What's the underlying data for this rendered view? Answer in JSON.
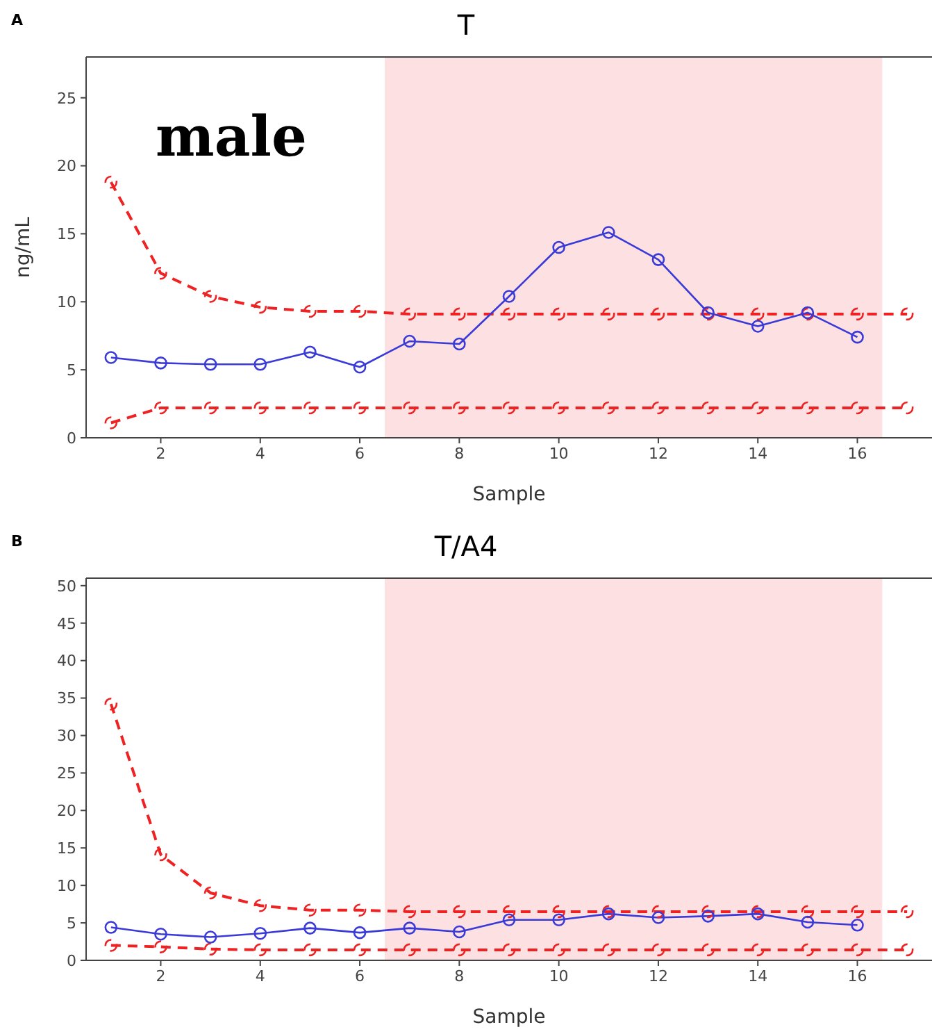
{
  "chart_data": [
    {
      "type": "line",
      "title": "T",
      "xlabel": "Sample",
      "ylabel": "ng/mL",
      "annotations": [
        "A",
        "male"
      ],
      "x": [
        1,
        2,
        3,
        4,
        5,
        6,
        7,
        8,
        9,
        10,
        11,
        12,
        13,
        14,
        15,
        16,
        17
      ],
      "xlim": [
        0.5,
        17.5
      ],
      "xticks": [
        2,
        4,
        6,
        8,
        10,
        12,
        14,
        16
      ],
      "ylim": [
        0,
        28
      ],
      "yticks": [
        0,
        5,
        10,
        15,
        20,
        25
      ],
      "marker": "circle",
      "grid": false,
      "legend": false,
      "bands": [
        {
          "axis": "x",
          "from": 6.5,
          "to": 16.5,
          "color": "#fde1e2"
        }
      ],
      "series": [
        {
          "color": "#ee2222",
          "line_style": "dashed",
          "values": [
            18.8,
            12.1,
            10.4,
            9.6,
            9.3,
            9.3,
            9.1,
            9.1,
            9.1,
            9.1,
            9.1,
            9.1,
            9.1,
            9.1,
            9.1,
            9.1,
            9.1
          ]
        },
        {
          "color": "#ee2222",
          "line_style": "dashed",
          "values": [
            1.1,
            2.2,
            2.2,
            2.2,
            2.2,
            2.2,
            2.2,
            2.2,
            2.2,
            2.2,
            2.2,
            2.2,
            2.2,
            2.2,
            2.2,
            2.2,
            2.2
          ]
        },
        {
          "color": "#3a3ad8",
          "line_style": "solid",
          "values": [
            5.9,
            5.5,
            5.4,
            5.4,
            6.3,
            5.2,
            7.1,
            6.9,
            10.4,
            14.0,
            15.1,
            13.1,
            9.2,
            8.2,
            9.2,
            7.4,
            null
          ]
        }
      ]
    },
    {
      "type": "line",
      "title": "T/A4",
      "xlabel": "Sample",
      "annotations": [
        "B"
      ],
      "x": [
        1,
        2,
        3,
        4,
        5,
        6,
        7,
        8,
        9,
        10,
        11,
        12,
        13,
        14,
        15,
        16,
        17
      ],
      "xlim": [
        0.5,
        17.5
      ],
      "xticks": [
        2,
        4,
        6,
        8,
        10,
        12,
        14,
        16
      ],
      "ylim": [
        0,
        51
      ],
      "yticks": [
        0,
        5,
        10,
        15,
        20,
        25,
        30,
        35,
        40,
        45,
        50
      ],
      "marker": "circle",
      "grid": false,
      "legend": false,
      "bands": [
        {
          "axis": "x",
          "from": 6.5,
          "to": 16.5,
          "color": "#fde1e2"
        }
      ],
      "series": [
        {
          "color": "#ee2222",
          "line_style": "dashed",
          "values": [
            34.2,
            14.1,
            9.0,
            7.3,
            6.7,
            6.7,
            6.5,
            6.5,
            6.5,
            6.5,
            6.5,
            6.5,
            6.5,
            6.5,
            6.5,
            6.5,
            6.5
          ]
        },
        {
          "color": "#ee2222",
          "line_style": "dashed",
          "values": [
            2.0,
            1.8,
            1.5,
            1.4,
            1.4,
            1.4,
            1.4,
            1.4,
            1.4,
            1.4,
            1.4,
            1.4,
            1.4,
            1.4,
            1.4,
            1.4,
            1.4
          ]
        },
        {
          "color": "#3a3ad8",
          "line_style": "solid",
          "values": [
            4.4,
            3.5,
            3.1,
            3.6,
            4.3,
            3.7,
            4.3,
            3.8,
            5.4,
            5.4,
            6.2,
            5.7,
            5.9,
            6.2,
            5.1,
            4.7,
            null
          ]
        }
      ]
    }
  ]
}
